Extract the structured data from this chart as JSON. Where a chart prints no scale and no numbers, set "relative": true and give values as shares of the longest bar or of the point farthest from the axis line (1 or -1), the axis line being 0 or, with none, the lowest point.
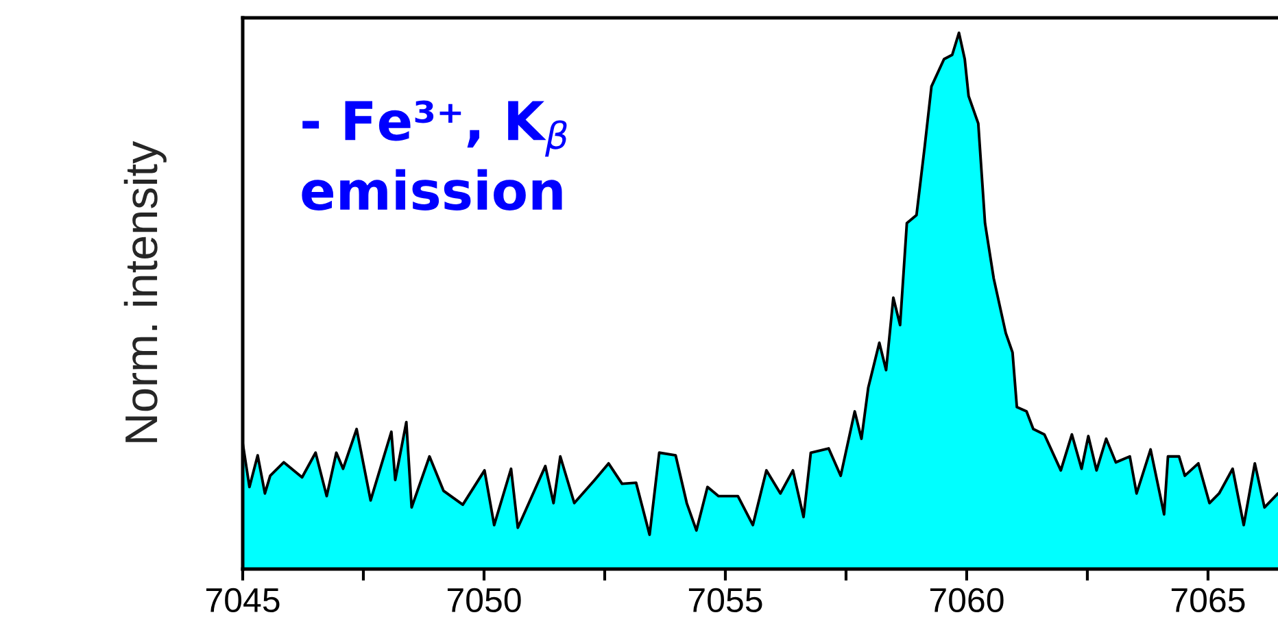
{
  "chart_data": {
    "type": "area",
    "relative": true,
    "ylabel": "Norm. intensity",
    "annotations": [
      "- Fe³⁺, K$_{β}$\nemission"
    ],
    "xlim": [
      7045,
      7066.45
    ],
    "xticks": [
      7045,
      {
        "value": 7047.5,
        "label": null
      },
      7050,
      {
        "value": 7052.5,
        "label": null
      },
      7055,
      {
        "value": 7057.5,
        "label": null
      },
      7060,
      {
        "value": 7062.5,
        "label": null
      },
      7065
    ],
    "grid": false,
    "legend": false,
    "series": [
      {
        "color": "#00ffff",
        "x": [
          7045.0,
          7045.14,
          7045.31,
          7045.46,
          7045.57,
          7045.85,
          7046.23,
          7046.51,
          7046.74,
          7046.94,
          7047.08,
          7047.36,
          7047.65,
          7048.08,
          7048.16,
          7048.39,
          7048.5,
          7048.87,
          7049.16,
          7049.56,
          7050.01,
          7050.21,
          7050.56,
          7050.7,
          7051.27,
          7051.44,
          7051.58,
          7051.87,
          7052.29,
          7052.58,
          7052.86,
          7053.15,
          7053.43,
          7053.63,
          7053.97,
          7054.2,
          7054.4,
          7054.63,
          7054.86,
          7055.26,
          7055.57,
          7055.85,
          7056.14,
          7056.4,
          7056.62,
          7056.77,
          7057.14,
          7057.39,
          7057.68,
          7057.82,
          7057.96,
          7058.19,
          7058.33,
          7058.48,
          7058.62,
          7058.76,
          7058.96,
          7059.13,
          7059.27,
          7059.53,
          7059.7,
          7059.84,
          7059.96,
          7060.04,
          7060.24,
          7060.38,
          7060.56,
          7060.81,
          7060.95,
          7061.04,
          7061.24,
          7061.38,
          7061.61,
          7061.95,
          7062.18,
          7062.38,
          7062.52,
          7062.69,
          7062.89,
          7063.09,
          7063.38,
          7063.52,
          7063.81,
          7064.09,
          7064.17,
          7064.4,
          7064.52,
          7064.8,
          7065.03,
          7065.23,
          7065.51,
          7065.74,
          7065.97,
          7066.17,
          7066.45
        ],
        "values": [
          0.235,
          0.153,
          0.212,
          0.141,
          0.174,
          0.199,
          0.171,
          0.217,
          0.136,
          0.217,
          0.187,
          0.261,
          0.128,
          0.256,
          0.166,
          0.274,
          0.115,
          0.21,
          0.146,
          0.12,
          0.184,
          0.082,
          0.187,
          0.077,
          0.192,
          0.123,
          0.21,
          0.123,
          0.166,
          0.197,
          0.159,
          0.161,
          0.064,
          0.217,
          0.212,
          0.123,
          0.072,
          0.153,
          0.136,
          0.136,
          0.082,
          0.184,
          0.141,
          0.184,
          0.097,
          0.217,
          0.225,
          0.174,
          0.294,
          0.243,
          0.338,
          0.422,
          0.371,
          0.506,
          0.455,
          0.645,
          0.66,
          0.788,
          0.9,
          0.951,
          0.959,
          1,
          0.951,
          0.882,
          0.831,
          0.645,
          0.542,
          0.44,
          0.404,
          0.302,
          0.294,
          0.261,
          0.251,
          0.184,
          0.251,
          0.187,
          0.248,
          0.184,
          0.243,
          0.199,
          0.21,
          0.141,
          0.223,
          0.102,
          0.21,
          0.21,
          0.174,
          0.197,
          0.123,
          0.141,
          0.187,
          0.082,
          0.197,
          0.115,
          0.141
        ]
      }
    ]
  }
}
